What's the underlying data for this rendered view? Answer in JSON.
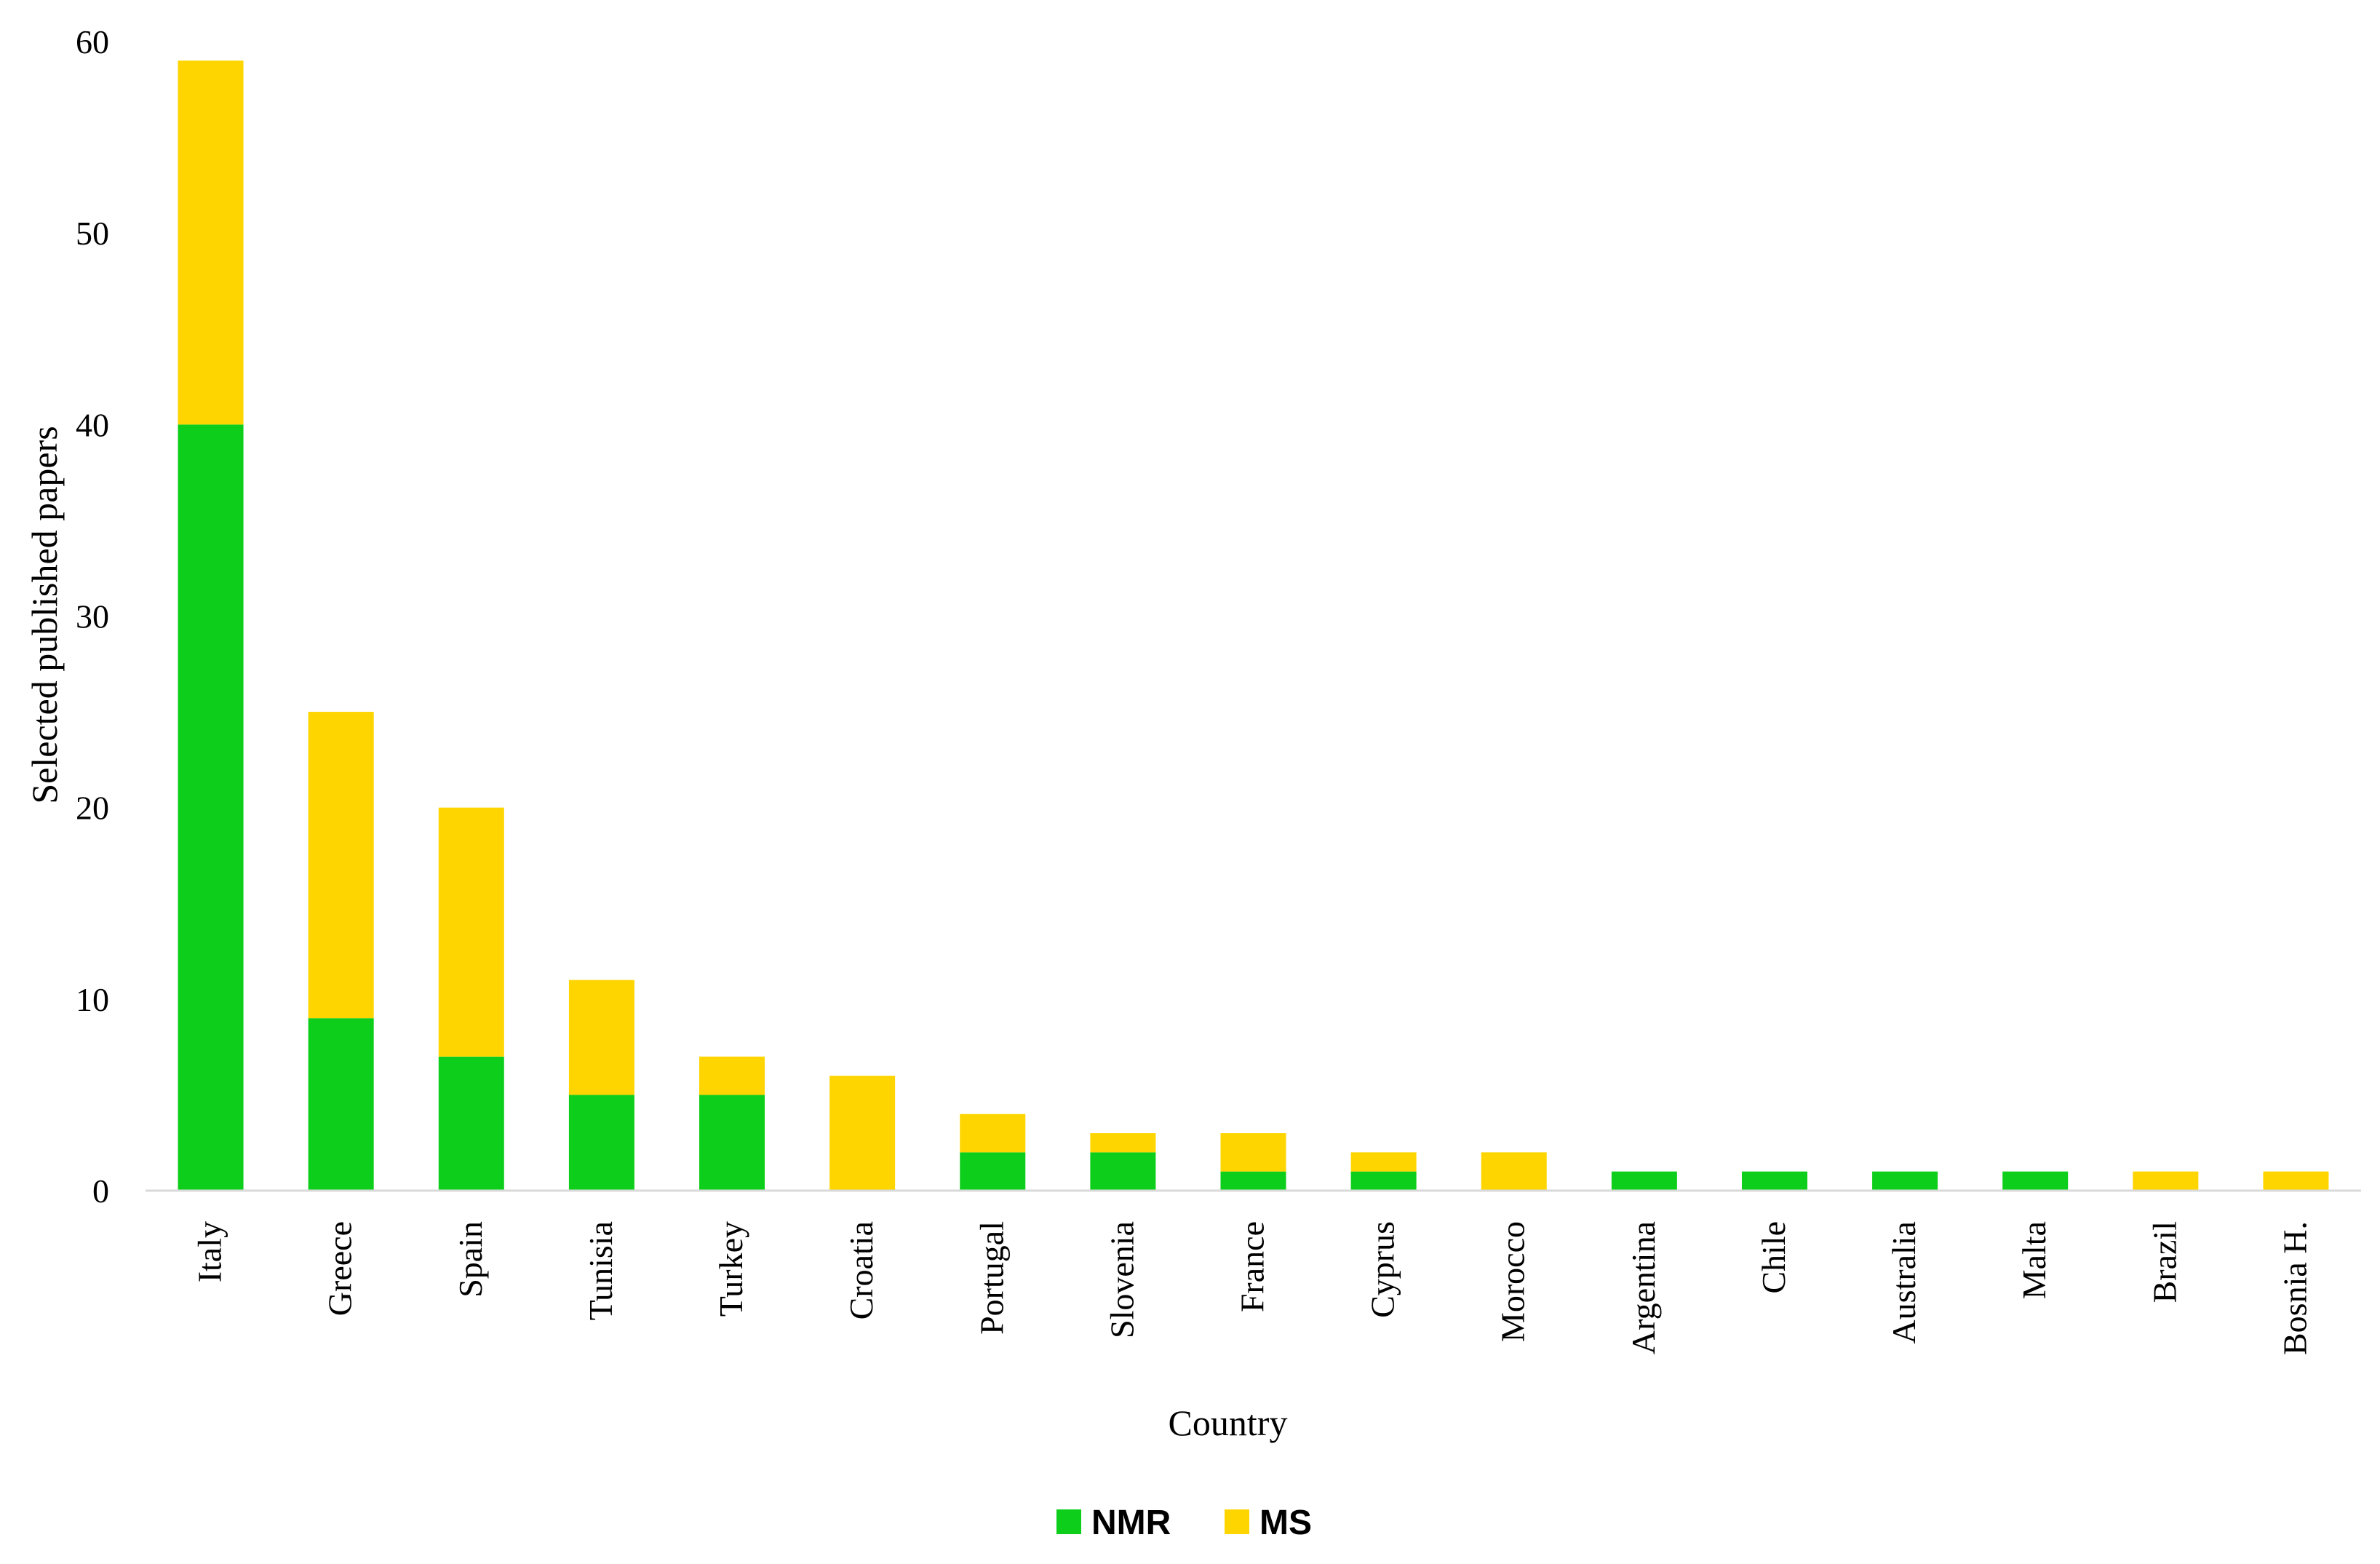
{
  "chart_data": {
    "type": "bar",
    "stacked": true,
    "title": "",
    "xlabel": "Country",
    "ylabel": "Selected published papers",
    "ylim": [
      0,
      60
    ],
    "yticks": [
      0,
      10,
      20,
      30,
      40,
      50,
      60
    ],
    "grid": false,
    "legend_position": "bottom",
    "categories": [
      "Italy",
      "Greece",
      "Spain",
      "Tunisia",
      "Turkey",
      "Croatia",
      "Portugal",
      "Slovenia",
      "France",
      "Cyprus",
      "Morocco",
      "Argentina",
      "Chile",
      "Australia",
      "Malta",
      "Brazil",
      "Bosnia H."
    ],
    "series": [
      {
        "name": "NMR",
        "color": "#0dce1b",
        "values": [
          40,
          9,
          7,
          5,
          5,
          0,
          2,
          2,
          1,
          1,
          0,
          1,
          1,
          1,
          1,
          0,
          0
        ]
      },
      {
        "name": "MS",
        "color": "#ffd500",
        "values": [
          19,
          16,
          13,
          6,
          2,
          6,
          2,
          1,
          2,
          1,
          2,
          0,
          0,
          0,
          0,
          1,
          1
        ]
      }
    ]
  }
}
